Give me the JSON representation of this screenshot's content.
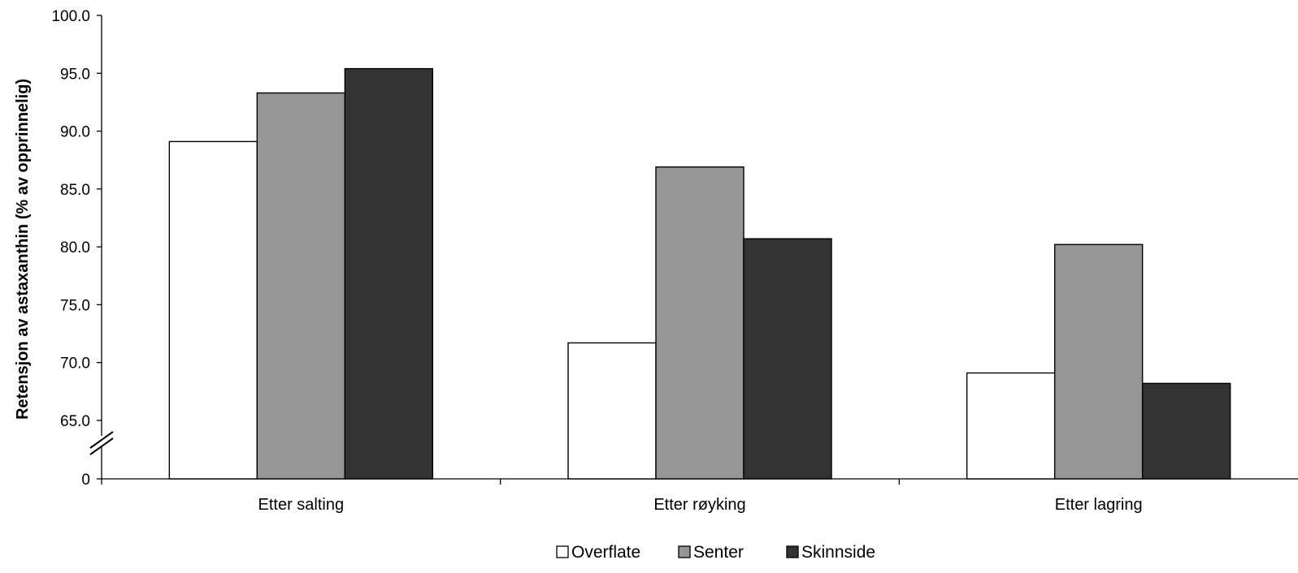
{
  "chart_data": {
    "type": "bar",
    "ylabel": "Retensjon av astaxanthin (% av opprinnelig)",
    "xlabel": "",
    "categories": [
      "Etter salting",
      "Etter røyking",
      "Etter lagring"
    ],
    "series": [
      {
        "name": "Overflate",
        "color": "#ffffff",
        "values": [
          89.1,
          71.7,
          69.1
        ]
      },
      {
        "name": "Senter",
        "color": "#969696",
        "values": [
          93.3,
          86.9,
          80.2
        ]
      },
      {
        "name": "Skinnside",
        "color": "#333333",
        "values": [
          95.4,
          80.7,
          68.2
        ]
      }
    ],
    "y_ticks": [
      {
        "label": "0",
        "value": 0
      },
      {
        "label": "65.0",
        "value": 65
      },
      {
        "label": "70.0",
        "value": 70
      },
      {
        "label": "75.0",
        "value": 75
      },
      {
        "label": "80.0",
        "value": 80
      },
      {
        "label": "85.0",
        "value": 85
      },
      {
        "label": "90.0",
        "value": 90
      },
      {
        "label": "95.0",
        "value": 95
      },
      {
        "label": "100.0",
        "value": 100
      }
    ],
    "ylim": [
      0,
      100
    ],
    "axis_break": "between 0 and 65",
    "grid": false,
    "legend_position": "bottom"
  }
}
